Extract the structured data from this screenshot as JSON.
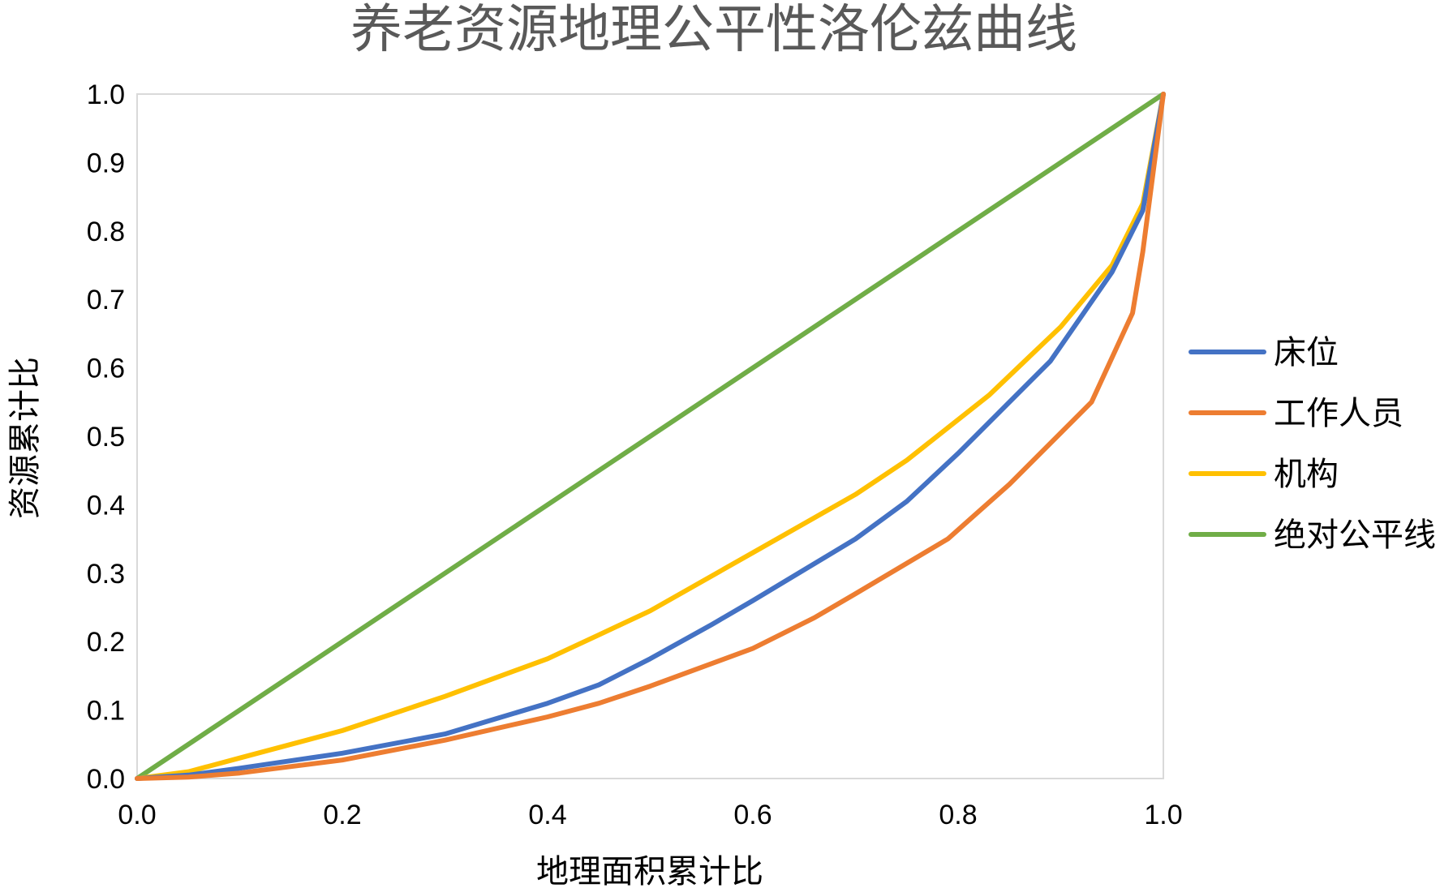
{
  "chart_data": {
    "type": "line",
    "title": "养老资源地理公平性洛伦兹曲线",
    "xlabel": "地理面积累计比",
    "ylabel": "资源累计比",
    "xlim": [
      0,
      1
    ],
    "ylim": [
      0,
      1
    ],
    "x_ticks": [
      "0.0",
      "0.2",
      "0.4",
      "0.6",
      "0.8",
      "1.0"
    ],
    "y_ticks": [
      "0.0",
      "0.1",
      "0.2",
      "0.3",
      "0.4",
      "0.5",
      "0.6",
      "0.7",
      "0.8",
      "0.9",
      "1.0"
    ],
    "grid": false,
    "legend_position": "right",
    "series": [
      {
        "name": "床位",
        "color": "#4472C4",
        "points": [
          [
            0,
            0
          ],
          [
            0.05,
            0.005
          ],
          [
            0.1,
            0.015
          ],
          [
            0.2,
            0.037
          ],
          [
            0.3,
            0.065
          ],
          [
            0.4,
            0.11
          ],
          [
            0.45,
            0.137
          ],
          [
            0.5,
            0.175
          ],
          [
            0.56,
            0.225
          ],
          [
            0.6,
            0.26
          ],
          [
            0.7,
            0.35
          ],
          [
            0.75,
            0.405
          ],
          [
            0.8,
            0.475
          ],
          [
            0.89,
            0.61
          ],
          [
            0.95,
            0.74
          ],
          [
            0.98,
            0.83
          ],
          [
            1.0,
            1.0
          ]
        ]
      },
      {
        "name": "工作人员",
        "color": "#ED7D31",
        "points": [
          [
            0,
            0
          ],
          [
            0.05,
            0.002
          ],
          [
            0.1,
            0.008
          ],
          [
            0.2,
            0.027
          ],
          [
            0.3,
            0.056
          ],
          [
            0.4,
            0.09
          ],
          [
            0.45,
            0.11
          ],
          [
            0.5,
            0.135
          ],
          [
            0.6,
            0.19
          ],
          [
            0.66,
            0.235
          ],
          [
            0.7,
            0.27
          ],
          [
            0.79,
            0.35
          ],
          [
            0.85,
            0.43
          ],
          [
            0.93,
            0.55
          ],
          [
            0.97,
            0.68
          ],
          [
            0.98,
            0.77
          ],
          [
            1.0,
            1.0
          ]
        ]
      },
      {
        "name": "机构",
        "color": "#FFC000",
        "points": [
          [
            0,
            0
          ],
          [
            0.05,
            0.01
          ],
          [
            0.1,
            0.03
          ],
          [
            0.2,
            0.07
          ],
          [
            0.3,
            0.12
          ],
          [
            0.4,
            0.175
          ],
          [
            0.45,
            0.21
          ],
          [
            0.5,
            0.245
          ],
          [
            0.6,
            0.33
          ],
          [
            0.7,
            0.415
          ],
          [
            0.75,
            0.465
          ],
          [
            0.83,
            0.56
          ],
          [
            0.9,
            0.66
          ],
          [
            0.95,
            0.75
          ],
          [
            0.98,
            0.84
          ],
          [
            1.0,
            1.0
          ]
        ]
      },
      {
        "name": "绝对公平线",
        "color": "#70AD47",
        "points": [
          [
            0,
            0
          ],
          [
            1,
            1
          ]
        ]
      }
    ]
  }
}
